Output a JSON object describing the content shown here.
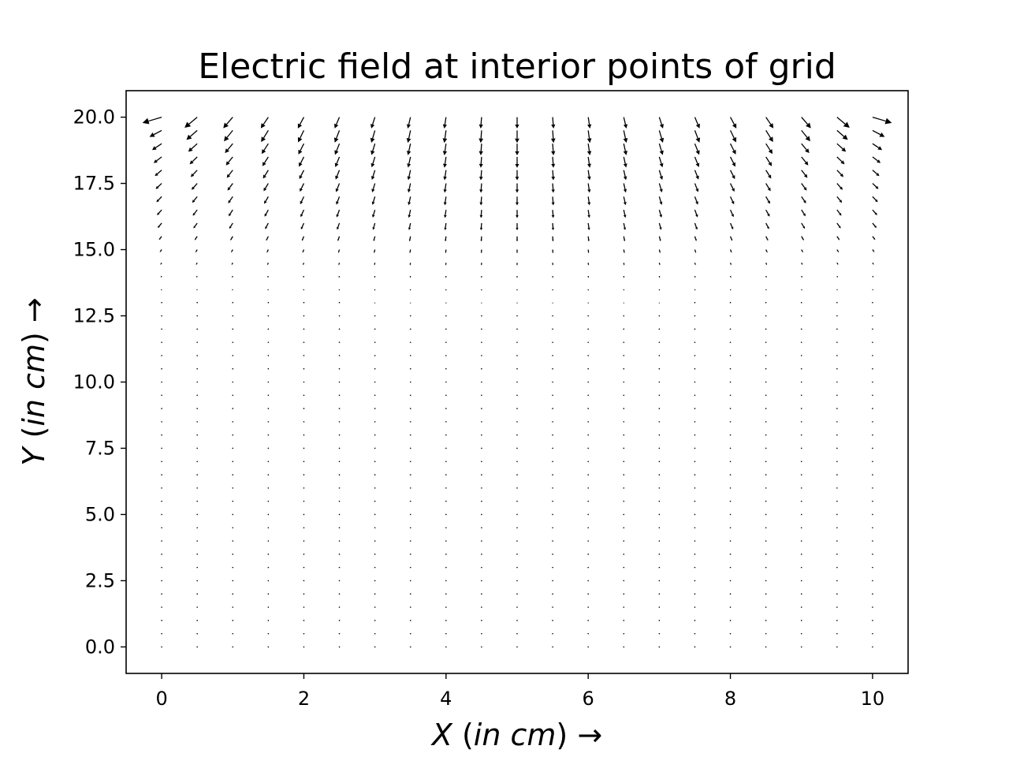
{
  "chart_data": {
    "type": "quiver",
    "title": "Electric field at interior points of grid",
    "xlabel": "X (in cm) →",
    "ylabel": "Y (in cm) →",
    "xlabel_parts": {
      "var": "X",
      "open": " (",
      "unit": "in cm",
      "close": ")",
      "arrow": " →"
    },
    "ylabel_parts": {
      "var": "Y",
      "open": " (",
      "unit": "in cm",
      "close": ")",
      "arrow": " →"
    },
    "xlim": [
      -0.5,
      10.5
    ],
    "ylim": [
      -1.0,
      21.0
    ],
    "xticks": [
      0,
      2,
      4,
      6,
      8,
      10
    ],
    "xtick_labels": [
      "0",
      "2",
      "4",
      "6",
      "8",
      "10"
    ],
    "yticks": [
      0,
      2.5,
      5,
      7.5,
      10,
      12.5,
      15,
      17.5,
      20
    ],
    "ytick_labels": [
      "0.0",
      "2.5",
      "5.0",
      "7.5",
      "10.0",
      "12.5",
      "15.0",
      "17.5",
      "20.0"
    ],
    "grid": false,
    "legend": "none",
    "grid_x": {
      "start": 0,
      "stop": 10,
      "step": 0.5
    },
    "grid_y": {
      "start": 0,
      "stop": 20,
      "step": 0.5
    },
    "vector_field": "electric field pointing outward and downward from a charged plate near y = 20 cm spanning x = 0 to 10 cm; field magnitude large near y = 16–20 cm and negligible below y ≈ 10 cm",
    "color": "#000000"
  }
}
